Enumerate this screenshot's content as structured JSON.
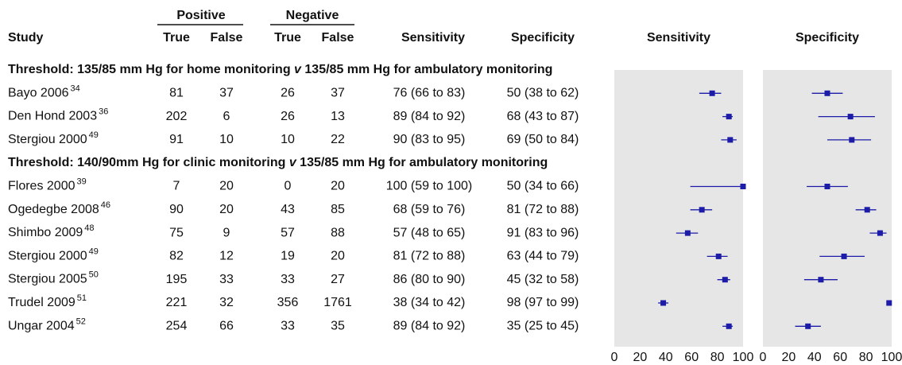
{
  "chart_data": {
    "type": "forest",
    "headers": {
      "positive": "Positive",
      "negative": "Negative",
      "study": "Study",
      "true_pos": "True",
      "false_pos": "False",
      "true_neg": "True",
      "false_neg": "False",
      "sensitivity": "Sensitivity",
      "specificity": "Specificity",
      "panel_sensitivity": "Sensitivity",
      "panel_specificity": "Specificity"
    },
    "color": "#1c1ca8",
    "xlim": [
      0,
      100
    ],
    "xticks": [
      0,
      20,
      40,
      60,
      80,
      100
    ],
    "groups": [
      {
        "label": [
          "Threshold: 135/85 mm Hg for home monitoring ",
          "v",
          " 135/85 mm Hg for ambulatory monitoring"
        ],
        "rows": [
          {
            "study": "Bayo 2006",
            "ref": "34",
            "tp": 81,
            "fp": 37,
            "tn": 26,
            "fn": 37,
            "sensitivity": {
              "values": [
                76,
                66,
                83
              ],
              "label": "76 (66 to 83)"
            },
            "specificity": {
              "values": [
                50,
                38,
                62
              ],
              "label": "50 (38 to 62)"
            }
          },
          {
            "study": "Den Hond 2003",
            "ref": "36",
            "tp": 202,
            "fp": 6,
            "tn": 26,
            "fn": 13,
            "sensitivity": {
              "values": [
                89,
                84,
                92
              ],
              "label": "89 (84 to 92)"
            },
            "specificity": {
              "values": [
                68,
                43,
                87
              ],
              "label": "68 (43 to 87)"
            }
          },
          {
            "study": "Stergiou 2000",
            "ref": "49",
            "tp": 91,
            "fp": 10,
            "tn": 10,
            "fn": 22,
            "sensitivity": {
              "values": [
                90,
                83,
                95
              ],
              "label": "90 (83 to 95)"
            },
            "specificity": {
              "values": [
                69,
                50,
                84
              ],
              "label": "69 (50 to 84)"
            }
          }
        ]
      },
      {
        "label": [
          "Threshold: 140/90mm Hg for clinic monitoring ",
          "v",
          " 135/85 mm Hg for ambulatory monitoring"
        ],
        "rows": [
          {
            "study": "Flores 2000",
            "ref": "39",
            "tp": 7,
            "fp": 20,
            "tn": 0,
            "fn": 20,
            "sensitivity": {
              "values": [
                100,
                59,
                100
              ],
              "label": "100 (59 to 100)"
            },
            "specificity": {
              "values": [
                50,
                34,
                66
              ],
              "label": "50 (34 to 66)"
            }
          },
          {
            "study": "Ogedegbe 2008",
            "ref": "46",
            "tp": 90,
            "fp": 20,
            "tn": 43,
            "fn": 85,
            "sensitivity": {
              "values": [
                68,
                59,
                76
              ],
              "label": "68 (59 to 76)"
            },
            "specificity": {
              "values": [
                81,
                72,
                88
              ],
              "label": "81 (72 to 88)"
            }
          },
          {
            "study": "Shimbo 2009",
            "ref": "48",
            "tp": 75,
            "fp": 9,
            "tn": 57,
            "fn": 88,
            "sensitivity": {
              "values": [
                57,
                48,
                65
              ],
              "label": "57 (48 to 65)"
            },
            "specificity": {
              "values": [
                91,
                83,
                96
              ],
              "label": "91 (83 to 96)"
            }
          },
          {
            "study": "Stergiou 2000",
            "ref": "49",
            "tp": 82,
            "fp": 12,
            "tn": 19,
            "fn": 20,
            "sensitivity": {
              "values": [
                81,
                72,
                88
              ],
              "label": "81 (72 to 88)"
            },
            "specificity": {
              "values": [
                63,
                44,
                79
              ],
              "label": "63 (44 to 79)"
            }
          },
          {
            "study": "Stergiou 2005",
            "ref": "50",
            "tp": 195,
            "fp": 33,
            "tn": 33,
            "fn": 27,
            "sensitivity": {
              "values": [
                86,
                80,
                90
              ],
              "label": "86 (80 to 90)"
            },
            "specificity": {
              "values": [
                45,
                32,
                58
              ],
              "label": "45 (32 to 58)"
            }
          },
          {
            "study": "Trudel 2009",
            "ref": "51",
            "tp": 221,
            "fp": 32,
            "tn": 356,
            "fn": 1761,
            "sensitivity": {
              "values": [
                38,
                34,
                42
              ],
              "label": "38 (34 to 42)"
            },
            "specificity": {
              "values": [
                98,
                97,
                99
              ],
              "label": "98 (97 to 99)"
            }
          },
          {
            "study": "Ungar 2004",
            "ref": "52",
            "tp": 254,
            "fp": 66,
            "tn": 33,
            "fn": 35,
            "sensitivity": {
              "values": [
                89,
                84,
                92
              ],
              "label": "89 (84 to 92)"
            },
            "specificity": {
              "values": [
                35,
                25,
                45
              ],
              "label": "35 (25 to 45)"
            }
          }
        ]
      }
    ]
  }
}
